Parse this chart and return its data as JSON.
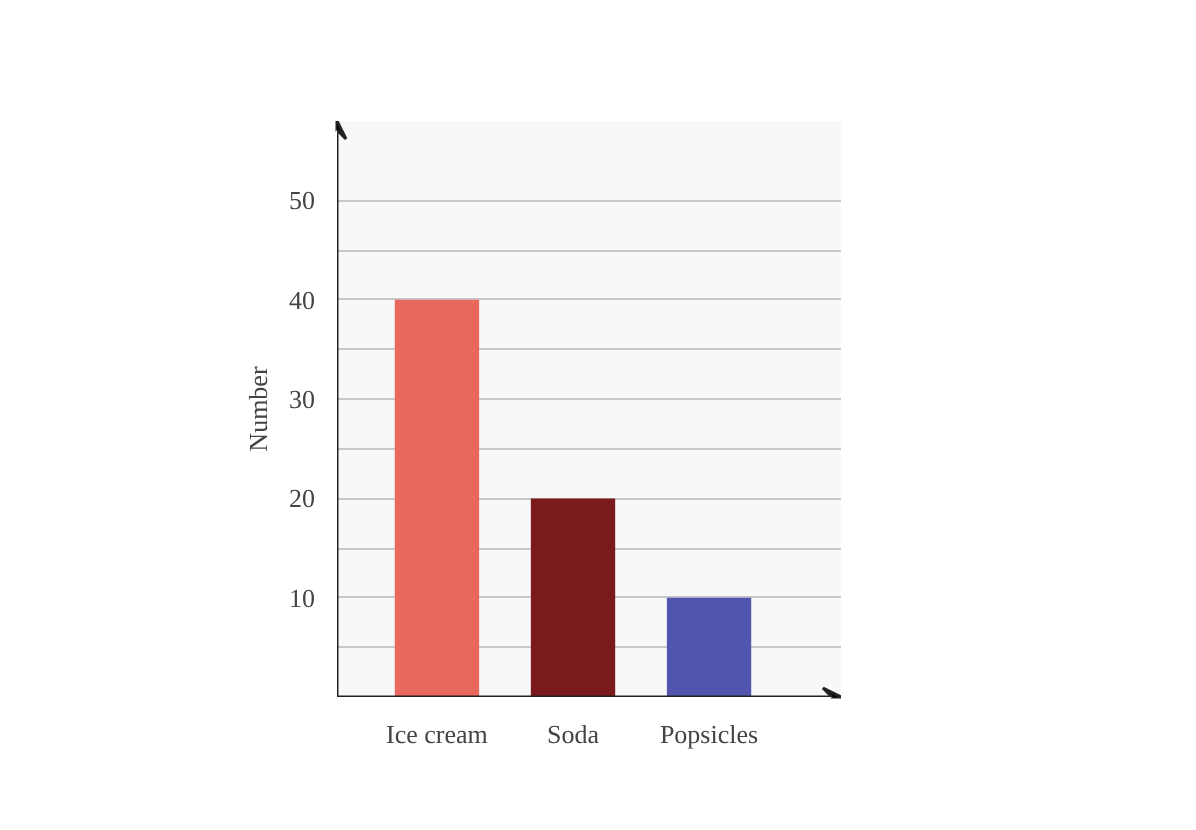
{
  "chart_data": {
    "type": "bar",
    "ylabel": "Number",
    "categories": [
      "Ice cream",
      "Soda",
      "Popsicles"
    ],
    "values": [
      40,
      20,
      10
    ],
    "colors": [
      "#e8685e",
      "#7b1a1c",
      "#5255b0"
    ],
    "ylim": [
      0,
      58
    ],
    "yticks": [
      {
        "value": 5,
        "label": null
      },
      10,
      {
        "value": 15,
        "label": null
      },
      20,
      {
        "value": 25,
        "label": null
      },
      30,
      {
        "value": 35,
        "label": null
      },
      40,
      {
        "value": 45,
        "label": null
      },
      50
    ],
    "grid": "y"
  }
}
